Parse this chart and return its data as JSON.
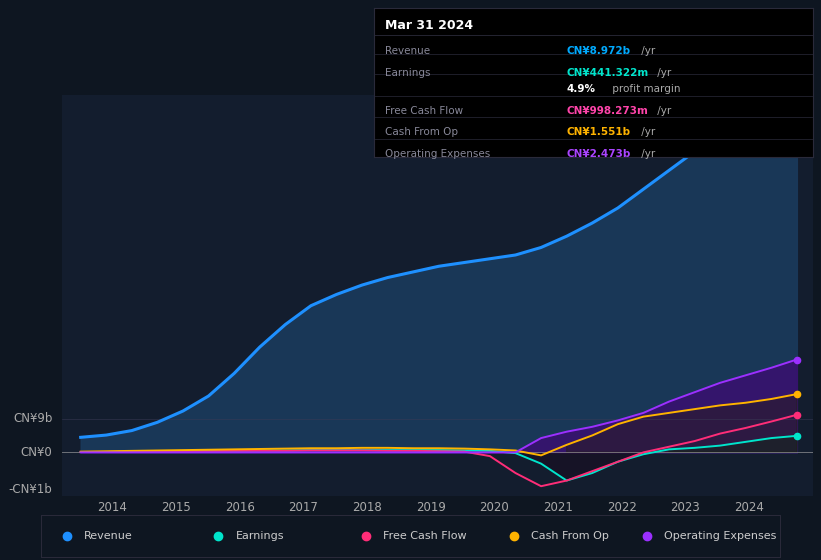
{
  "background_color": "#0e1621",
  "plot_bg_color": "#0e1621",
  "chart_bg_color": "#131d2e",
  "xtick_years": [
    2014,
    2015,
    2016,
    2017,
    2018,
    2019,
    2020,
    2021,
    2022,
    2023,
    2024
  ],
  "revenue_color": "#1e90ff",
  "earnings_color": "#00e5cc",
  "fcf_color": "#ff2d78",
  "cashfromop_color": "#ffb300",
  "opex_color": "#9b30ff",
  "revenue_fill_color": "#1a3a5c",
  "opex_fill_color": "#3a1070",
  "legend": [
    {
      "label": "Revenue",
      "color": "#1e90ff"
    },
    {
      "label": "Earnings",
      "color": "#00e5cc"
    },
    {
      "label": "Free Cash Flow",
      "color": "#ff2d78"
    },
    {
      "label": "Cash From Op",
      "color": "#ffb300"
    },
    {
      "label": "Operating Expenses",
      "color": "#9b30ff"
    }
  ],
  "revenue": [
    0.4,
    0.46,
    0.58,
    0.8,
    1.1,
    1.5,
    2.1,
    2.8,
    3.4,
    3.9,
    4.2,
    4.45,
    4.65,
    4.8,
    4.95,
    5.05,
    5.15,
    5.25,
    5.45,
    5.75,
    6.1,
    6.5,
    7.0,
    7.5,
    8.0,
    8.4,
    8.6,
    8.9,
    8.97
  ],
  "earnings": [
    0.01,
    0.01,
    0.02,
    0.02,
    0.03,
    0.04,
    0.04,
    0.05,
    0.05,
    0.06,
    0.06,
    0.06,
    0.06,
    0.06,
    0.06,
    0.05,
    0.04,
    -0.02,
    -0.3,
    -0.75,
    -0.55,
    -0.25,
    -0.05,
    0.08,
    0.12,
    0.18,
    0.28,
    0.38,
    0.44
  ],
  "fcf": [
    0.01,
    0.01,
    0.02,
    0.02,
    0.03,
    0.03,
    0.04,
    0.04,
    0.04,
    0.05,
    0.05,
    0.05,
    0.04,
    0.04,
    0.03,
    0.02,
    -0.1,
    -0.55,
    -0.9,
    -0.75,
    -0.5,
    -0.25,
    0.0,
    0.15,
    0.3,
    0.5,
    0.65,
    0.82,
    1.0
  ],
  "cashfromop": [
    0.02,
    0.03,
    0.04,
    0.05,
    0.06,
    0.07,
    0.08,
    0.09,
    0.1,
    0.11,
    0.11,
    0.12,
    0.12,
    0.11,
    0.11,
    0.1,
    0.08,
    0.05,
    -0.08,
    0.2,
    0.45,
    0.75,
    0.95,
    1.05,
    1.15,
    1.25,
    1.32,
    1.42,
    1.55
  ],
  "opex": [
    0.0,
    0.0,
    0.0,
    0.0,
    0.0,
    0.0,
    0.0,
    0.0,
    0.0,
    0.0,
    0.0,
    0.0,
    0.0,
    0.0,
    0.0,
    0.0,
    0.0,
    0.0,
    0.38,
    0.55,
    0.68,
    0.85,
    1.05,
    1.35,
    1.6,
    1.85,
    2.05,
    2.25,
    2.47
  ],
  "ylim_min": -1.15,
  "ylim_max": 9.5,
  "xlim_min": 2013.2,
  "xlim_max": 2025.0,
  "box_date": "Mar 31 2024",
  "box_rows": [
    {
      "label": "Revenue",
      "value": "CN¥8.972b",
      "unit": " /yr",
      "color": "#00aaff"
    },
    {
      "label": "Earnings",
      "value": "CN¥441.322m",
      "unit": " /yr",
      "color": "#00e5cc"
    },
    {
      "label": "",
      "value": "4.9%",
      "unit": " profit margin",
      "color": "#ffffff"
    },
    {
      "label": "Free Cash Flow",
      "value": "CN¥998.273m",
      "unit": " /yr",
      "color": "#ff44aa"
    },
    {
      "label": "Cash From Op",
      "value": "CN¥1.551b",
      "unit": " /yr",
      "color": "#ffb300"
    },
    {
      "label": "Operating Expenses",
      "value": "CN¥2.473b",
      "unit": " /yr",
      "color": "#aa44ff"
    }
  ]
}
